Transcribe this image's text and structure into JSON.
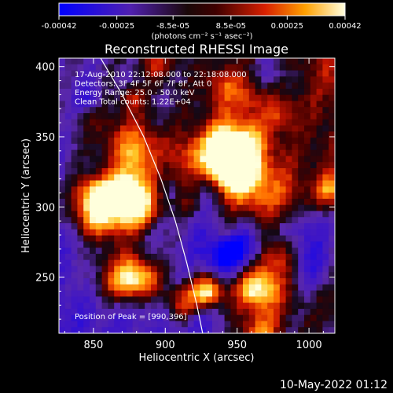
{
  "chart_data": {
    "type": "heatmap",
    "title": "Reconstructed RHESSI Image",
    "xlabel": "Heliocentric X (arcsec)",
    "ylabel": "Heliocentric Y (arcsec)",
    "xlim": [
      826,
      1018
    ],
    "ylim": [
      210,
      406
    ],
    "xticks": [
      850,
      900,
      950,
      1000
    ],
    "yticks": [
      250,
      300,
      350,
      400
    ],
    "colorbar": {
      "min": -0.00042,
      "max": 0.00042,
      "ticks": [
        "-0.00042",
        "-0.00025",
        "-8.5e-05",
        "8.5e-05",
        "0.00025",
        "0.00042"
      ],
      "unit_label": "(photons cm⁻² s⁻¹ asec⁻²)"
    },
    "annotations": [
      "17-Aug-2010 22:12:08.000 to 22:18:08.000",
      "Detectors: 3F 4F 5F 6F 7F 8F, Att 0",
      "Energy Range: 25.0 - 50.0 keV",
      "Clean     Total counts: 1.22E+04"
    ],
    "peak_label": "Position of Peak = [990,396]",
    "limb_curve": [
      [
        855,
        406
      ],
      [
        870,
        380
      ],
      [
        885,
        350
      ],
      [
        897,
        320
      ],
      [
        907,
        290
      ],
      [
        915,
        260
      ],
      [
        922,
        230
      ],
      [
        926,
        210
      ]
    ]
  },
  "footer_date": "10-May-2022 01:12"
}
